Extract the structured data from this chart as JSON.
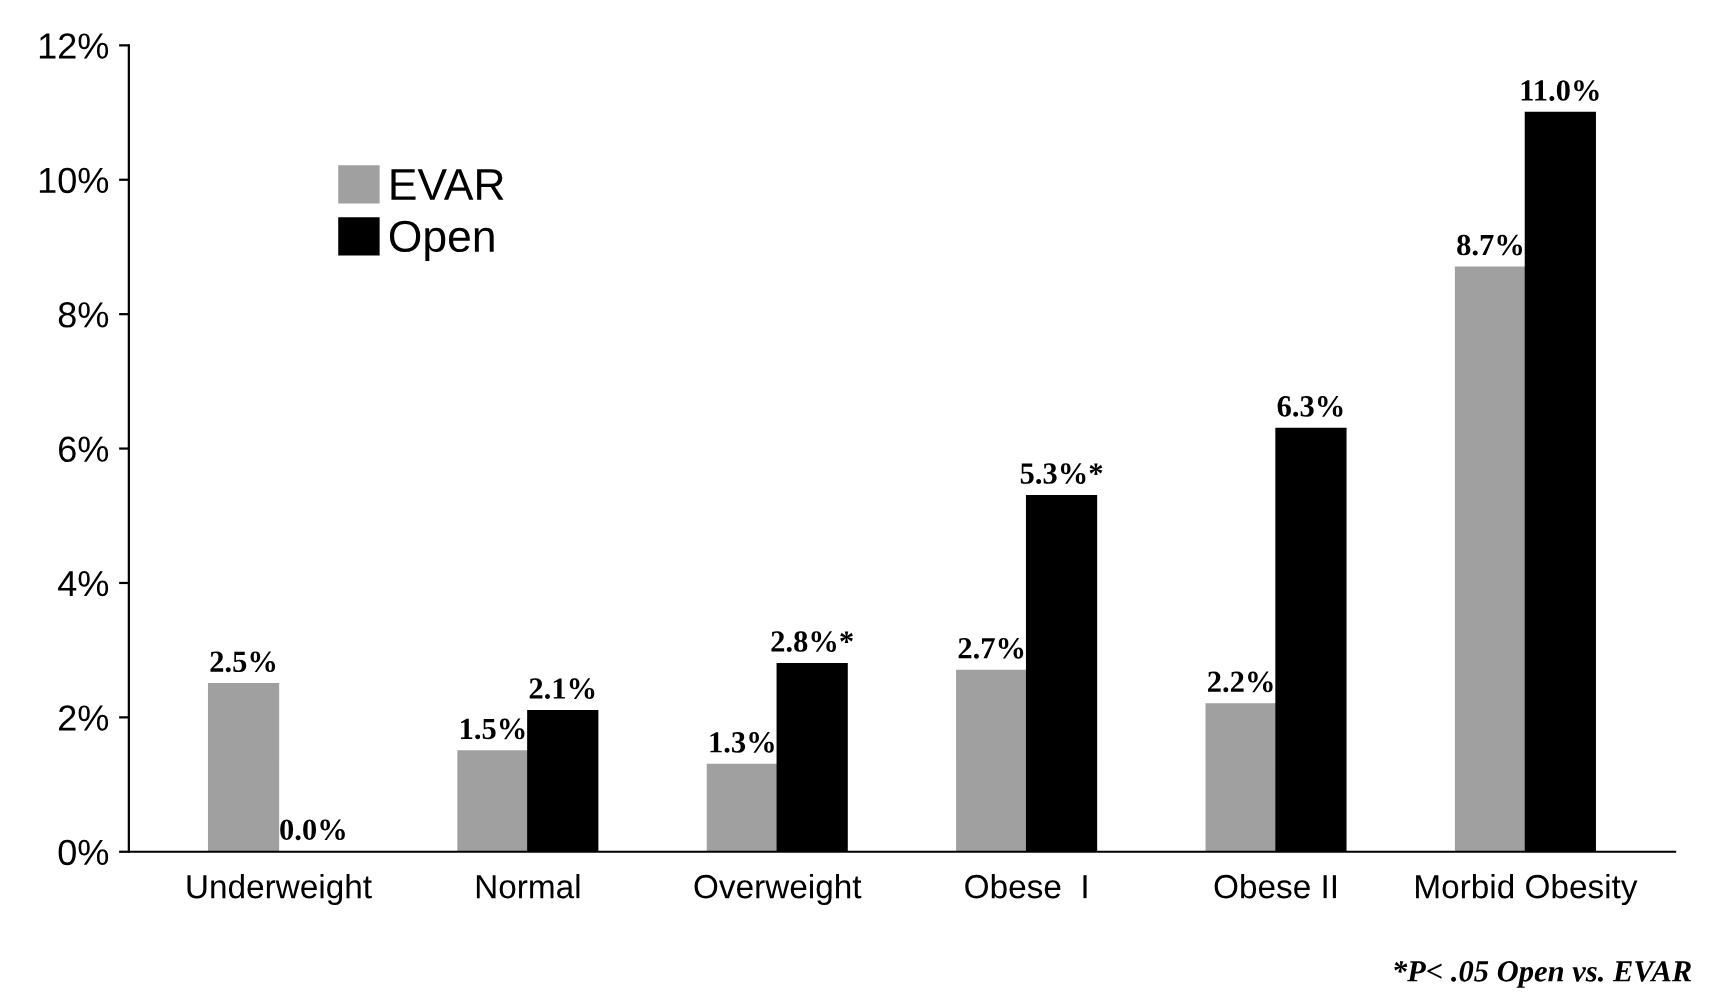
{
  "chart_data": {
    "type": "bar",
    "categories": [
      "Underweight",
      "Normal",
      "Overweight",
      "Obese  I",
      "Obese II",
      "Morbid Obesity"
    ],
    "series": [
      {
        "name": "EVAR",
        "color": "#a0a0a0",
        "values": [
          2.5,
          1.5,
          1.3,
          2.7,
          2.2,
          8.7
        ],
        "value_labels": [
          "2.5%",
          "1.5%",
          "1.3%",
          "2.7%",
          "2.2%",
          "8.7%"
        ]
      },
      {
        "name": "Open",
        "color": "#000000",
        "values": [
          0.0,
          2.1,
          2.8,
          5.3,
          6.3,
          11.0
        ],
        "value_labels": [
          "0.0%",
          "2.1%",
          "2.8%*",
          "5.3%*",
          "6.3%",
          "11.0%"
        ]
      }
    ],
    "ylim": [
      0,
      12
    ],
    "yticks": [
      {
        "value": 0,
        "label": "0%"
      },
      {
        "value": 2,
        "label": "2%"
      },
      {
        "value": 4,
        "label": "4%"
      },
      {
        "value": 6,
        "label": "6%"
      },
      {
        "value": 8,
        "label": "8%"
      },
      {
        "value": 10,
        "label": "10%"
      },
      {
        "value": 12,
        "label": "12%"
      }
    ],
    "grid": false,
    "legend": "top left",
    "annotations": [
      "*P< .05 Open vs. EVAR"
    ]
  }
}
